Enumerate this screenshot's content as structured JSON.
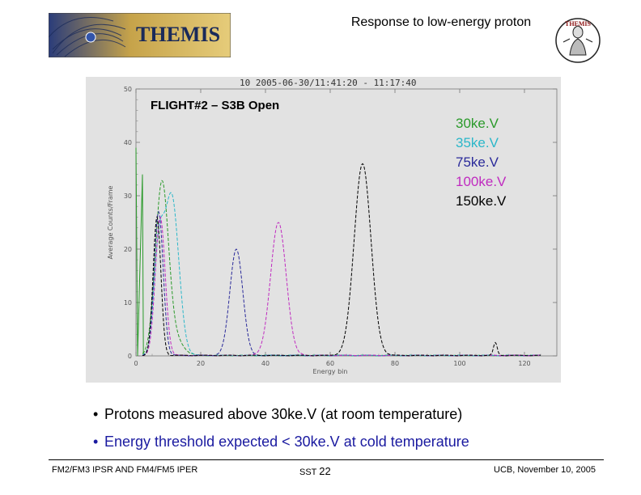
{
  "header": {
    "logo_text": "THEMIS",
    "title": "Response to low-energy proton",
    "mascot_text": "THEMIS"
  },
  "plot_heading": "10 2005-06-30/11:41:20 - 11:17:40",
  "overlay_title": "FLIGHT#2 – S3B Open",
  "legend": [
    {
      "label": "30ke.V",
      "color": "#2a9a2a"
    },
    {
      "label": "35ke.V",
      "color": "#2bb7c9"
    },
    {
      "label": "75ke.V",
      "color": "#2a2a9a"
    },
    {
      "label": "100ke.V",
      "color": "#c02bc0"
    },
    {
      "label": "150ke.V",
      "color": "#000000"
    }
  ],
  "chart_data": {
    "type": "line",
    "xlabel": "Energy bin",
    "ylabel": "Average Counts/Frame",
    "xlim": [
      0,
      130
    ],
    "ylim": [
      0,
      50
    ],
    "x_ticks": [
      "0",
      "20",
      "40",
      "60",
      "80",
      "100",
      "120"
    ],
    "y_ticks": [
      "0",
      "10",
      "20",
      "30",
      "40",
      "50"
    ],
    "series": [
      {
        "name": "30ke.V",
        "color": "#2a9a2a",
        "peaks": [
          [
            8,
            32,
            2.0
          ],
          [
            12,
            3,
            2.5
          ]
        ],
        "spike": [
          [
            0,
            39
          ],
          [
            0.5,
            0
          ],
          [
            2,
            34
          ],
          [
            2.3,
            0
          ]
        ]
      },
      {
        "name": "35ke.V",
        "color": "#2bb7c9",
        "peaks": [
          [
            11,
            30,
            2.2
          ],
          [
            7,
            18,
            1.5
          ]
        ]
      },
      {
        "name": "75ke.V",
        "color": "#2a2a9a",
        "peaks": [
          [
            7,
            27,
            1.4
          ],
          [
            31,
            20,
            2.0
          ]
        ]
      },
      {
        "name": "100ke.V",
        "color": "#c02bc0",
        "peaks": [
          [
            7.5,
            26,
            1.5
          ],
          [
            44,
            25,
            2.4
          ]
        ]
      },
      {
        "name": "150ke.V",
        "color": "#000000",
        "peaks": [
          [
            6.5,
            26,
            1.2
          ],
          [
            70,
            36,
            2.6
          ],
          [
            111,
            2.5,
            0.6
          ]
        ]
      }
    ]
  },
  "bullets": [
    {
      "text": "Protons measured above 30ke.V (at room temperature)",
      "color": "#000000"
    },
    {
      "text": "Energy threshold expected < 30ke.V at cold temperature",
      "color": "#1a1aa0"
    }
  ],
  "footer": {
    "left": "FM2/FM3 IPSR AND FM4/FM5 IPER",
    "center_prefix": "SST",
    "center_number": "22",
    "right": "UCB, November 10, 2005"
  }
}
